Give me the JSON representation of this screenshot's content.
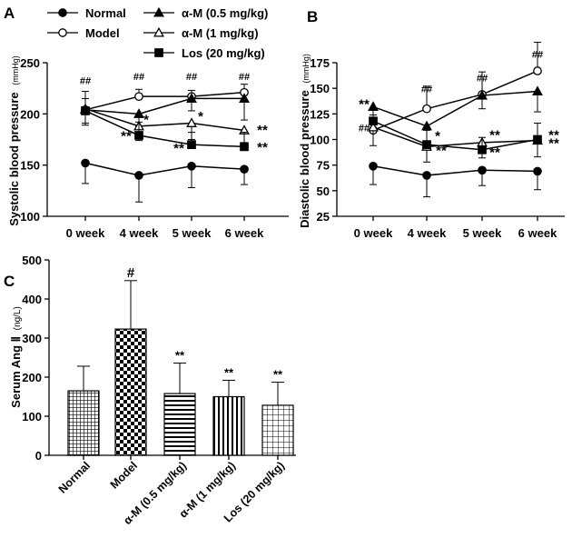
{
  "legend": [
    {
      "marker": "filled-circle",
      "label": "Normal"
    },
    {
      "marker": "open-circle",
      "label": "Model"
    },
    {
      "marker": "filled-triangle",
      "label": "α-M (0.5 mg/kg)"
    },
    {
      "marker": "open-triangle",
      "label": "α-M (1 mg/kg)"
    },
    {
      "marker": "filled-square",
      "label": "Los (20 mg/kg)"
    }
  ],
  "chart_data": [
    {
      "panel": "A",
      "type": "line",
      "ylabel": "Systolic blood pressure",
      "yunit": "(mmHg)",
      "categories": [
        "0 week",
        "4 week",
        "5 week",
        "6 week"
      ],
      "ylim": [
        100,
        250
      ],
      "yticks": [
        100,
        150,
        200,
        250
      ],
      "series": [
        {
          "name": "Normal",
          "marker": "filled-circle",
          "values": [
            152,
            140,
            149,
            146
          ],
          "err": [
            20,
            26,
            21,
            15
          ],
          "err_dir": "down"
        },
        {
          "name": "Model",
          "marker": "open-circle",
          "values": [
            204,
            217,
            217,
            221
          ],
          "err": [
            18,
            7,
            6,
            8
          ],
          "err_dir": "up"
        },
        {
          "name": "α-M (0.5 mg/kg)",
          "marker": "filled-triangle",
          "values": [
            204,
            200,
            215,
            215
          ],
          "err": [
            15,
            12,
            12,
            21
          ],
          "err_dir": "down"
        },
        {
          "name": "α-M (1 mg/kg)",
          "marker": "open-triangle",
          "values": [
            205,
            188,
            191,
            184
          ],
          "err": [
            14,
            14,
            16,
            12
          ],
          "err_dir": "down"
        },
        {
          "name": "Los (20 mg/kg)",
          "marker": "filled-square",
          "values": [
            203,
            179,
            170,
            168
          ],
          "err": [
            12,
            13,
            12,
            14
          ],
          "err_dir": "up"
        }
      ],
      "annotations": [
        {
          "text": "##",
          "x": "0 week",
          "y": 229
        },
        {
          "text": "##",
          "x": "4 week",
          "y": 233
        },
        {
          "text": "##",
          "x": "5 week",
          "y": 233
        },
        {
          "text": "##",
          "x": "6 week",
          "y": 233
        },
        {
          "text": "*",
          "x": "4 week",
          "y": 190
        },
        {
          "text": "**",
          "x": "4 week",
          "y": 174
        },
        {
          "text": "*",
          "x": "5 week",
          "y": 193
        },
        {
          "text": "**",
          "x": "5 week",
          "y": 162
        },
        {
          "text": "**",
          "x": "6 week",
          "y": 180
        },
        {
          "text": "**",
          "x": "6 week",
          "y": 163
        }
      ]
    },
    {
      "panel": "B",
      "type": "line",
      "ylabel": "Diastolic blood pressure",
      "yunit": "(mmHg)",
      "categories": [
        "0 week",
        "4 week",
        "5 week",
        "6 week"
      ],
      "ylim": [
        25,
        175
      ],
      "yticks": [
        25,
        50,
        75,
        100,
        125,
        150,
        175
      ],
      "series": [
        {
          "name": "Normal",
          "marker": "filled-circle",
          "values": [
            74,
            65,
            70,
            69
          ],
          "err": [
            18,
            21,
            15,
            18
          ],
          "err_dir": "down"
        },
        {
          "name": "Model",
          "marker": "open-circle",
          "values": [
            109,
            130,
            144,
            167
          ],
          "err": [
            15,
            22,
            22,
            28
          ],
          "err_dir": "up"
        },
        {
          "name": "α-M (0.5 mg/kg)",
          "marker": "filled-triangle",
          "values": [
            132,
            113,
            143,
            147
          ],
          "err": [
            20,
            20,
            13,
            20
          ],
          "err_dir": "down"
        },
        {
          "name": "α-M (1 mg/kg)",
          "marker": "open-triangle",
          "values": [
            112,
            93,
            97,
            99
          ],
          "err": [
            18,
            15,
            15,
            16
          ],
          "err_dir": "down"
        },
        {
          "name": "Los (20 mg/kg)",
          "marker": "filled-square",
          "values": [
            118,
            95,
            90,
            100
          ],
          "err": [
            12,
            14,
            12,
            16
          ],
          "err_dir": "up"
        }
      ],
      "annotations": [
        {
          "text": "**",
          "x": "0 week",
          "y": 130
        },
        {
          "text": "##",
          "x": "0 week",
          "y": 108
        },
        {
          "text": "##",
          "x": "4 week",
          "y": 146
        },
        {
          "text": "*",
          "x": "4 week",
          "y": 99
        },
        {
          "text": "**",
          "x": "4 week",
          "y": 85
        },
        {
          "text": "##",
          "x": "5 week",
          "y": 157
        },
        {
          "text": "**",
          "x": "5 week",
          "y": 100
        },
        {
          "text": "**",
          "x": "5 week",
          "y": 83
        },
        {
          "text": "##",
          "x": "6 week",
          "y": 180
        },
        {
          "text": "**",
          "x": "6 week",
          "y": 100
        },
        {
          "text": "**",
          "x": "6 week",
          "y": 92
        }
      ]
    },
    {
      "panel": "C",
      "type": "bar",
      "ylabel": "Serum Ang Ⅱ",
      "yunit": "(ng/L)",
      "categories": [
        "Normal",
        "Model",
        "α-M (0.5 mg/kg)",
        "α-M (1 mg/kg)",
        "Los (20 mg/kg)"
      ],
      "values": [
        165,
        323,
        158,
        150,
        128
      ],
      "err": [
        63,
        124,
        78,
        42,
        59
      ],
      "fill_patterns": [
        "grid",
        "checker",
        "hstripe",
        "vstripe",
        "crosshatch"
      ],
      "ylim": [
        0,
        500
      ],
      "yticks": [
        0,
        100,
        200,
        300,
        400,
        500
      ],
      "bar_labels": [
        "",
        "#",
        "**",
        "**",
        "**"
      ]
    }
  ]
}
